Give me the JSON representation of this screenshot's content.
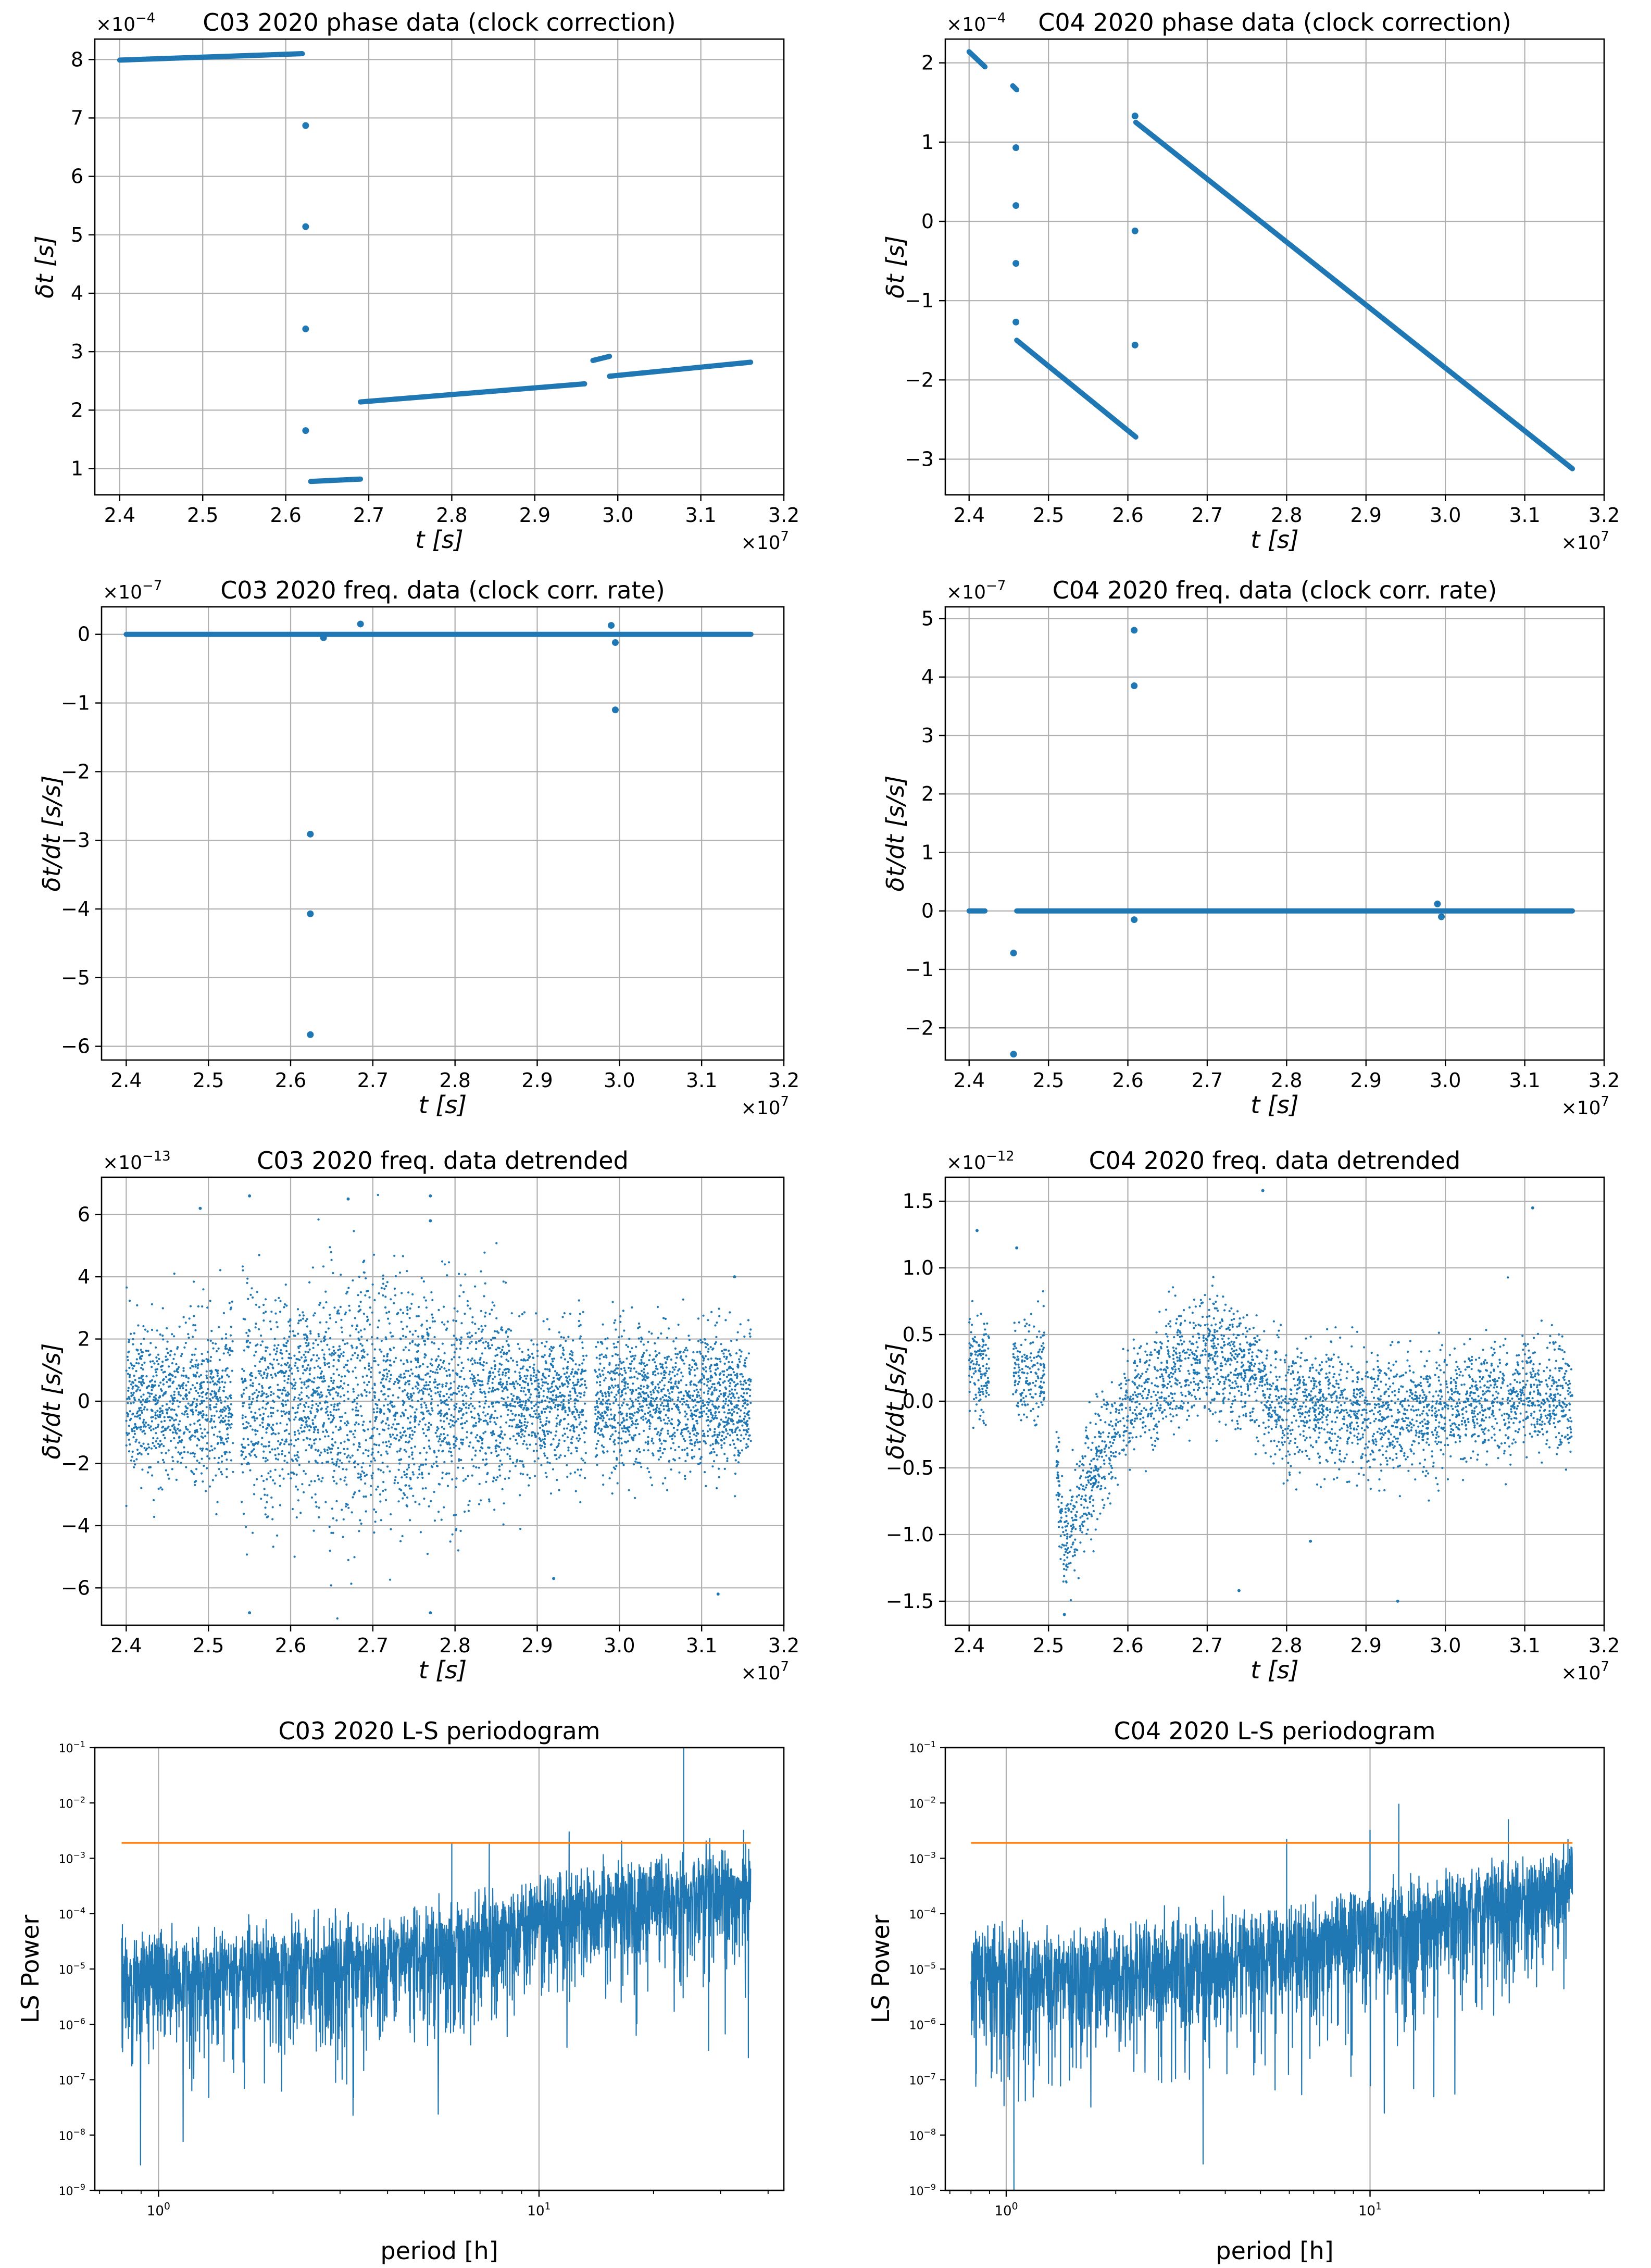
{
  "figure": {
    "title": ""
  },
  "chart_data": [
    {
      "id": "c03-phase",
      "type": "scatter",
      "marker": "dot",
      "title": "C03 2020 phase data (clock correction)",
      "xlabel": "t [s]",
      "ylabel": "δt [s]",
      "xscale_label": "×10^7",
      "yscale_label": "×10^-4",
      "xlim": [
        2.37,
        3.2
      ],
      "ylim": [
        0.55,
        8.35
      ],
      "xticks": [
        "2.4",
        "2.5",
        "2.6",
        "2.7",
        "2.8",
        "2.9",
        "3.0",
        "3.1",
        "3.2"
      ],
      "yticks": [
        "1",
        "2",
        "3",
        "4",
        "5",
        "6",
        "7",
        "8"
      ],
      "series": [
        {
          "name": "segment-1",
          "kind": "line",
          "x": [
            2.4,
            2.62
          ],
          "y": [
            7.99,
            8.1
          ]
        },
        {
          "name": "segment-2",
          "kind": "line",
          "x": [
            2.63,
            2.69
          ],
          "y": [
            0.78,
            0.82
          ]
        },
        {
          "name": "segment-3",
          "kind": "line",
          "x": [
            2.69,
            2.96
          ],
          "y": [
            2.14,
            2.45
          ]
        },
        {
          "name": "segment-4",
          "kind": "line",
          "x": [
            2.97,
            2.99
          ],
          "y": [
            2.85,
            2.92
          ]
        },
        {
          "name": "segment-5",
          "kind": "line",
          "x": [
            2.99,
            3.16
          ],
          "y": [
            2.58,
            2.82
          ]
        },
        {
          "name": "outliers",
          "kind": "points",
          "x": [
            2.624,
            2.624,
            2.624,
            2.624
          ],
          "y": [
            6.87,
            5.14,
            3.39,
            1.65
          ]
        }
      ]
    },
    {
      "id": "c04-phase",
      "type": "scatter",
      "marker": "dot",
      "title": "C04 2020 phase data (clock correction)",
      "xlabel": "t [s]",
      "ylabel": "δt [s]",
      "xscale_label": "×10^7",
      "yscale_label": "×10^-4",
      "xlim": [
        2.37,
        3.2
      ],
      "ylim": [
        -3.45,
        2.3
      ],
      "xticks": [
        "2.4",
        "2.5",
        "2.6",
        "2.7",
        "2.8",
        "2.9",
        "3.0",
        "3.1",
        "3.2"
      ],
      "yticks": [
        "−3",
        "−2",
        "−1",
        "0",
        "1",
        "2"
      ],
      "series": [
        {
          "name": "segment-1",
          "kind": "line",
          "x": [
            2.4,
            2.42
          ],
          "y": [
            2.14,
            1.95
          ]
        },
        {
          "name": "segment-2",
          "kind": "line",
          "x": [
            2.455,
            2.46
          ],
          "y": [
            1.71,
            1.66
          ]
        },
        {
          "name": "segment-3",
          "kind": "line",
          "x": [
            2.46,
            2.61
          ],
          "y": [
            -1.5,
            -2.72
          ]
        },
        {
          "name": "segment-4",
          "kind": "line",
          "x": [
            2.61,
            3.16
          ],
          "y": [
            1.25,
            -3.12
          ]
        },
        {
          "name": "outliers",
          "kind": "points",
          "x": [
            2.459,
            2.459,
            2.459,
            2.459,
            2.609,
            2.609,
            2.609
          ],
          "y": [
            0.93,
            0.2,
            -0.53,
            -1.27,
            1.33,
            -0.12,
            -1.56
          ]
        }
      ]
    },
    {
      "id": "c03-freq",
      "type": "scatter",
      "marker": "dot",
      "title": "C03 2020 freq. data (clock corr. rate)",
      "xlabel": "t [s]",
      "ylabel": "δt/dt  [s/s]",
      "xscale_label": "×10^7",
      "yscale_label": "×10^-7",
      "xlim": [
        2.37,
        3.2
      ],
      "ylim": [
        -6.2,
        0.4
      ],
      "xticks": [
        "2.4",
        "2.5",
        "2.6",
        "2.7",
        "2.8",
        "2.9",
        "3.0",
        "3.1",
        "3.2"
      ],
      "yticks": [
        "−6",
        "−5",
        "−4",
        "−3",
        "−2",
        "−1",
        "0"
      ],
      "series": [
        {
          "name": "baseline",
          "kind": "line",
          "x": [
            2.4,
            3.16
          ],
          "y": [
            0.0,
            0.0
          ]
        },
        {
          "name": "outliers",
          "kind": "points",
          "x": [
            2.624,
            2.624,
            2.624,
            2.685,
            2.64,
            2.99,
            2.995,
            2.995
          ],
          "y": [
            -2.91,
            -4.07,
            -5.83,
            0.15,
            -0.05,
            0.13,
            -0.12,
            -1.1
          ]
        }
      ]
    },
    {
      "id": "c04-freq",
      "type": "scatter",
      "marker": "dot",
      "title": "C04 2020 freq. data (clock corr. rate)",
      "xlabel": "t [s]",
      "ylabel": "δt/dt  [s/s]",
      "xscale_label": "×10^7",
      "yscale_label": "×10^-7",
      "xlim": [
        2.37,
        3.2
      ],
      "ylim": [
        -2.55,
        5.2
      ],
      "xticks": [
        "2.4",
        "2.5",
        "2.6",
        "2.7",
        "2.8",
        "2.9",
        "3.0",
        "3.1",
        "3.2"
      ],
      "yticks": [
        "−2",
        "−1",
        "0",
        "1",
        "2",
        "3",
        "4",
        "5"
      ],
      "series": [
        {
          "name": "baseline-a",
          "kind": "line",
          "x": [
            2.4,
            2.42
          ],
          "y": [
            0.0,
            0.0
          ]
        },
        {
          "name": "baseline-b",
          "kind": "line",
          "x": [
            2.46,
            3.16
          ],
          "y": [
            0.0,
            0.0
          ]
        },
        {
          "name": "outliers",
          "kind": "points",
          "x": [
            2.456,
            2.456,
            2.608,
            2.608,
            2.608,
            2.99,
            2.995
          ],
          "y": [
            -0.72,
            -2.45,
            4.8,
            3.85,
            -0.15,
            0.12,
            -0.1
          ]
        }
      ]
    },
    {
      "id": "c03-detrended",
      "type": "scatter",
      "marker": "noise",
      "title": "C03 2020 freq. data detrended",
      "xlabel": "t [s]",
      "ylabel": "δt/dt [s/s]",
      "xscale_label": "×10^7",
      "yscale_label": "×10^-13",
      "xlim": [
        2.37,
        3.2
      ],
      "ylim": [
        -7.2,
        7.2
      ],
      "xticks": [
        "2.4",
        "2.5",
        "2.6",
        "2.7",
        "2.8",
        "2.9",
        "3.0",
        "3.1",
        "3.2"
      ],
      "yticks": [
        "−6",
        "−4",
        "−2",
        "0",
        "2",
        "4",
        "6"
      ],
      "series": [
        {
          "name": "detrended",
          "x_range": [
            2.4,
            3.16
          ],
          "gaps": [
            [
              2.53,
              2.54
            ],
            [
              2.96,
              2.97
            ]
          ],
          "envelope": {
            "x": [
              2.4,
              2.45,
              2.5,
              2.55,
              2.6,
              2.65,
              2.7,
              2.75,
              2.8,
              2.85,
              2.9,
              2.95,
              3.0,
              3.05,
              3.1,
              3.16
            ],
            "amp": [
              3.2,
              2.8,
              3.2,
              4.5,
              3.6,
              4.5,
              4.8,
              4.2,
              4.2,
              3.4,
              2.6,
              2.6,
              2.6,
              2.6,
              2.6,
              2.6
            ]
          },
          "extremes": {
            "x": [
              2.49,
              2.55,
              2.55,
              2.67,
              2.77,
              2.77,
              2.77,
              2.92,
              3.12,
              3.14
            ],
            "y": [
              6.2,
              6.6,
              -6.8,
              6.5,
              6.6,
              -6.8,
              5.8,
              -5.7,
              -6.2,
              4.0
            ]
          }
        }
      ]
    },
    {
      "id": "c04-detrended",
      "type": "scatter",
      "marker": "noise",
      "title": "C04 2020 freq. data detrended",
      "xlabel": "t [s]",
      "ylabel": "δt/dt [s/s]",
      "xscale_label": "×10^7",
      "yscale_label": "×10^-12",
      "xlim": [
        2.37,
        3.2
      ],
      "ylim": [
        -1.68,
        1.68
      ],
      "xticks": [
        "2.4",
        "2.5",
        "2.6",
        "2.7",
        "2.8",
        "2.9",
        "3.0",
        "3.1",
        "3.2"
      ],
      "yticks": [
        "−1.5",
        "−1.0",
        "−0.5",
        "0.0",
        "0.5",
        "1.0",
        "1.5"
      ],
      "series": [
        {
          "name": "detrended",
          "x_range": [
            2.4,
            3.16
          ],
          "gaps": [
            [
              2.425,
              2.455
            ],
            [
              2.495,
              2.51
            ]
          ],
          "center": {
            "x": [
              2.4,
              2.45,
              2.5,
              2.52,
              2.55,
              2.6,
              2.65,
              2.7,
              2.75,
              2.8,
              2.85,
              2.9,
              2.95,
              3.0,
              3.05,
              3.1,
              3.16
            ],
            "y": [
              0.3,
              0.2,
              0.2,
              -1.1,
              -0.6,
              -0.05,
              0.2,
              0.35,
              0.2,
              -0.05,
              -0.05,
              -0.1,
              -0.1,
              -0.1,
              0.0,
              0.05,
              0.0
            ]
          },
          "envelope": {
            "x": [
              2.4,
              2.5,
              2.52,
              2.6,
              2.7,
              2.8,
              2.9,
              3.0,
              3.16
            ],
            "amp": [
              0.45,
              0.45,
              0.5,
              0.5,
              0.55,
              0.55,
              0.5,
              0.5,
              0.5
            ]
          },
          "extremes": {
            "x": [
              2.41,
              2.46,
              2.52,
              2.77,
              2.83,
              3.11,
              2.74,
              2.94
            ],
            "y": [
              1.28,
              1.15,
              -1.6,
              1.58,
              -1.05,
              1.45,
              -1.42,
              -1.5
            ]
          }
        }
      ]
    },
    {
      "id": "c03-periodogram",
      "type": "line",
      "xscale": "log",
      "yscale": "log",
      "title": "C03 2020 L-S periodogram",
      "xlabel": "period [h]",
      "ylabel": "LS Power",
      "xlim": [
        0.68,
        44
      ],
      "ylim": [
        1e-09,
        0.1
      ],
      "xticks": [
        {
          "value": 1,
          "label": "10^0"
        },
        {
          "value": 10,
          "label": "10^1"
        }
      ],
      "yticks": [
        {
          "value": 1e-09,
          "label": "10^-9"
        },
        {
          "value": 1e-08,
          "label": "10^-8"
        },
        {
          "value": 1e-07,
          "label": "10^-7"
        },
        {
          "value": 1e-06,
          "label": "10^-6"
        },
        {
          "value": 1e-05,
          "label": "10^-5"
        },
        {
          "value": 0.0001,
          "label": "10^-4"
        },
        {
          "value": 0.001,
          "label": "10^-3"
        },
        {
          "value": 0.01,
          "label": "10^-2"
        },
        {
          "value": 0.1,
          "label": "10^-1"
        }
      ],
      "series": [
        {
          "name": "LS power",
          "color": "#1f77b4",
          "period_range": [
            0.8,
            36
          ],
          "median_trend": {
            "period": [
              0.8,
              2,
              5,
              10,
              20,
              36
            ],
            "log10_power": [
              -5.0,
              -4.9,
              -4.6,
              -4.0,
              -3.6,
              -3.4
            ]
          },
          "peaks": {
            "period": [
              24,
              5.9,
              7.4,
              12.0,
              34.5,
              35.5
            ],
            "power": [
              0.1,
              0.0019,
              0.0018,
              0.003,
              0.0032,
              2.5e-07
            ]
          }
        },
        {
          "name": "significance threshold",
          "color": "#ff7f0e",
          "period_range": [
            0.8,
            36
          ],
          "power": 0.0019
        }
      ]
    },
    {
      "id": "c04-periodogram",
      "type": "line",
      "xscale": "log",
      "yscale": "log",
      "title": "C04 2020 L-S periodogram",
      "xlabel": "period [h]",
      "ylabel": "LS Power",
      "xlim": [
        0.68,
        44
      ],
      "ylim": [
        1e-09,
        0.1
      ],
      "xticks": [
        {
          "value": 1,
          "label": "10^0"
        },
        {
          "value": 10,
          "label": "10^1"
        }
      ],
      "yticks": [
        {
          "value": 1e-09,
          "label": "10^-9"
        },
        {
          "value": 1e-08,
          "label": "10^-8"
        },
        {
          "value": 1e-07,
          "label": "10^-7"
        },
        {
          "value": 1e-06,
          "label": "10^-6"
        },
        {
          "value": 1e-05,
          "label": "10^-5"
        },
        {
          "value": 0.0001,
          "label": "10^-4"
        },
        {
          "value": 0.001,
          "label": "10^-3"
        },
        {
          "value": 0.01,
          "label": "10^-2"
        },
        {
          "value": 0.1,
          "label": "10^-1"
        }
      ],
      "series": [
        {
          "name": "LS power",
          "color": "#1f77b4",
          "period_range": [
            0.8,
            36
          ],
          "median_trend": {
            "period": [
              0.8,
              2,
              5,
              10,
              20,
              36
            ],
            "log10_power": [
              -5.0,
              -4.9,
              -4.6,
              -4.2,
              -3.8,
              -3.3
            ]
          },
          "peaks": {
            "period": [
              12.0,
              5.9,
              10.0,
              24.0,
              35.0,
              1.05
            ],
            "power": [
              0.0095,
              0.0022,
              0.0032,
              0.005,
              0.0022,
              1e-09
            ]
          }
        },
        {
          "name": "significance threshold",
          "color": "#ff7f0e",
          "period_range": [
            0.8,
            36
          ],
          "power": 0.0019
        }
      ]
    }
  ]
}
